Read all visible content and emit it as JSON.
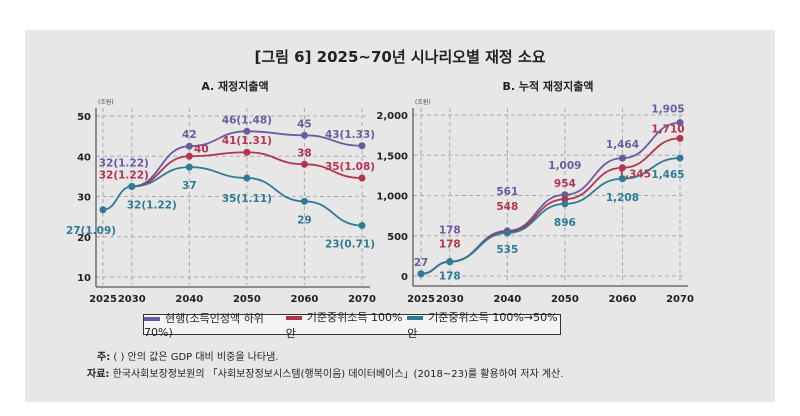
{
  "title": "[그림 6] 2025~70년 시나리오별 재정 소요",
  "colors": {
    "s1": "#6a5b9f",
    "s2": "#b4334f",
    "s3": "#2f7b93"
  },
  "chart_data": [
    {
      "type": "line",
      "title": "A. 재정지출액",
      "unit": "(조원)",
      "x": [
        2025,
        2030,
        2040,
        2050,
        2060,
        2070
      ],
      "ylim": [
        10,
        50
      ],
      "yticks": [
        10,
        20,
        30,
        40,
        50
      ],
      "grid": true,
      "series": [
        {
          "name": "현행(소득인정액 하위 70%)",
          "values": [
            null,
            32.5,
            42.5,
            46.2,
            45.2,
            42.6
          ],
          "labels": [
            null,
            "32(1.22)",
            "42",
            "46(1.48)",
            "45",
            "43(1.33)"
          ]
        },
        {
          "name": "기준중위소득 100% 안",
          "values": [
            null,
            32.5,
            40,
            41,
            38,
            34.6
          ],
          "labels": [
            null,
            "32(1.22)",
            "40",
            "41(1.31)",
            "38",
            "35(1.08)"
          ]
        },
        {
          "name": "기준중위소득 100%→50% 안",
          "values": [
            26.7,
            32.5,
            37.3,
            34.6,
            28.8,
            22.8
          ],
          "labels": [
            "27(1.09)",
            "32(1.22)",
            "37",
            "35(1.11)",
            "29",
            "23(0.71)"
          ]
        }
      ]
    },
    {
      "type": "line",
      "title": "B. 누적 재정지출액",
      "unit": "(조원)",
      "x": [
        2025,
        2030,
        2040,
        2050,
        2060,
        2070
      ],
      "ylim": [
        0,
        2000
      ],
      "yticks": [
        0,
        500,
        1000,
        1500,
        2000
      ],
      "grid": true,
      "series": [
        {
          "name": "현행(소득인정액 하위 70%)",
          "values": [
            27,
            178,
            561,
            1009,
            1464,
            1905
          ],
          "labels": [
            "27",
            "178",
            "561",
            "1,009",
            "1,464",
            "1,905"
          ]
        },
        {
          "name": "기준중위소득 100% 안",
          "values": [
            27,
            178,
            548,
            954,
            1345,
            1710
          ],
          "labels": [
            null,
            "178",
            "548",
            "954",
            "1,345",
            "1,710"
          ]
        },
        {
          "name": "기준중위소득 100%→50% 안",
          "values": [
            27,
            178,
            535,
            896,
            1208,
            1465
          ],
          "labels": [
            null,
            "178",
            "535",
            "896",
            "1,208",
            "1,465"
          ]
        }
      ]
    }
  ],
  "legend": [
    "현행(소득인정액 하위 70%)",
    "기준중위소득 100% 안",
    "기준중위소득 100%→50% 안"
  ],
  "note": {
    "label": "주:",
    "text": " ( ) 안의 값은 GDP 대비 비중을 나타냄."
  },
  "source": {
    "label": "자료:",
    "text": " 한국사회보장정보원의 「사회보장정보시스템(행복이음) 데이터베이스」(2018~23)를 활용하여 저자 계산."
  }
}
